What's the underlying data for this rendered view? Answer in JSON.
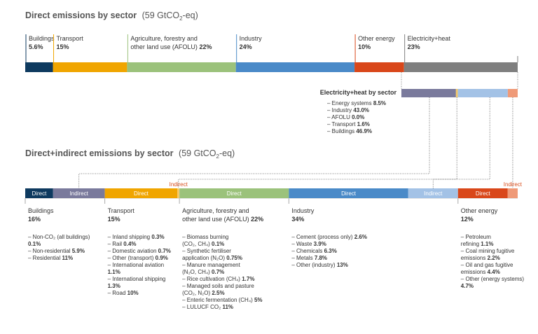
{
  "chart_data": [
    {
      "type": "bar",
      "title": "Direct emissions by sector",
      "title_unit": "(59 GtCO",
      "title_unit_sub": "2",
      "title_unit_end": "-eq)",
      "segments": [
        {
          "name": "Buildings",
          "label": "Buildings",
          "label2": "",
          "value_text": "5.6%",
          "value": 5.6,
          "color": "#0e3a5f"
        },
        {
          "name": "Transport",
          "label": "Transport",
          "label2": "",
          "value_text": "15%",
          "value": 15,
          "color": "#f0a500"
        },
        {
          "name": "AFOLU",
          "label": "Agriculture, forestry and",
          "label2": "other land use (AFOLU) ",
          "value_text": "22%",
          "value": 22,
          "color": "#9bc27b"
        },
        {
          "name": "Industry",
          "label": "Industry",
          "label2": "",
          "value_text": "24%",
          "value": 24,
          "color": "#4a8ac8"
        },
        {
          "name": "Other energy",
          "label": "Other energy",
          "label2": "",
          "value_text": "10%",
          "value": 10,
          "color": "#d9471a"
        },
        {
          "name": "Electricity+heat",
          "label": "Electricity+heat",
          "label2": "",
          "value_text": "23%",
          "value": 23,
          "color": "#7f7f7f"
        }
      ]
    },
    {
      "type": "bar",
      "title": "Electricity+heat by sector",
      "items": [
        {
          "label": "– Energy systems ",
          "value_text": "8.5%",
          "value": 8.5
        },
        {
          "label": "– Industry ",
          "value_text": "43.0%",
          "value": 43.0
        },
        {
          "label": "– AFOLU ",
          "value_text": "0.0%",
          "value": 0.0
        },
        {
          "label": "– Transport ",
          "value_text": "1.6%",
          "value": 1.6
        },
        {
          "label": "– Buildings ",
          "value_text": "46.9%",
          "value": 46.9
        }
      ]
    },
    {
      "type": "bar",
      "title": "Direct+indirect emissions by sector",
      "title_unit": "(59 GtCO",
      "title_unit_sub": "2",
      "title_unit_end": "-eq)",
      "direct_label": "Direct",
      "indirect_label": "Indirect",
      "sectors": [
        {
          "name": "Buildings",
          "label": "Buildings",
          "label2": "",
          "value_text": "16%",
          "value": 16,
          "direct": 5.6,
          "indirect": 10.4,
          "direct_color": "#0e3a5f",
          "indirect_color": "#7a7a9c",
          "items": [
            {
              "t": "– Non-CO₂ (all buildings)",
              "v": ""
            },
            {
              "t": "   ",
              "v": "0.1%"
            },
            {
              "t": "– Non-residential ",
              "v": "5.9%"
            },
            {
              "t": "– Residential ",
              "v": "11%"
            }
          ]
        },
        {
          "name": "Transport",
          "label": "Transport",
          "label2": "",
          "value_text": "15%",
          "value": 15,
          "direct": 14.6,
          "indirect": 0.4,
          "direct_color": "#f0a500",
          "indirect_color": "#f5c96a",
          "items": [
            {
              "t": "– Inland shipping ",
              "v": "0.3%"
            },
            {
              "t": "– Rail ",
              "v": "0.4%"
            },
            {
              "t": "– Domestic aviation ",
              "v": "0.7%"
            },
            {
              "t": "– Other (transport) ",
              "v": "0.9%"
            },
            {
              "t": "– International aviation",
              "v": ""
            },
            {
              "t": "   ",
              "v": "1.1%"
            },
            {
              "t": "– International shipping",
              "v": ""
            },
            {
              "t": "   ",
              "v": "1.3%"
            },
            {
              "t": "– Road ",
              "v": "10%"
            }
          ]
        },
        {
          "name": "AFOLU",
          "label": "Agriculture, forestry and",
          "label2": "other land use (AFOLU) ",
          "value_text": "22%",
          "value": 22,
          "direct": 22,
          "indirect": 0,
          "direct_color": "#9bc27b",
          "indirect_color": "#c5dcae",
          "items": [
            {
              "t": "– Biomass burning",
              "v": ""
            },
            {
              "t": "   (CO₂, CH₄) ",
              "v": "0.1%"
            },
            {
              "t": "– Synthetic fertiliser",
              "v": ""
            },
            {
              "t": "   application (N₂O) ",
              "v": "0.75%"
            },
            {
              "t": "– Manure management",
              "v": ""
            },
            {
              "t": "   (N₂O, CH₄) ",
              "v": "0.7%"
            },
            {
              "t": "– Rice cultivation (CH₄) ",
              "v": "1.7%"
            },
            {
              "t": "– Managed soils and pasture",
              "v": ""
            },
            {
              "t": "   (CO₂, N₂O) ",
              "v": "2.5%"
            },
            {
              "t": "– Enteric fermentation (CH₄) ",
              "v": "5%"
            },
            {
              "t": "– LULUCF CO₂ ",
              "v": "11%"
            }
          ]
        },
        {
          "name": "Industry",
          "label": "Industry",
          "label2": "",
          "value_text": "34%",
          "value": 34,
          "direct": 24,
          "indirect": 10,
          "direct_color": "#4a8ac8",
          "indirect_color": "#a3c2e6",
          "items": [
            {
              "t": "– Cement (process only) ",
              "v": "2.6%"
            },
            {
              "t": "– Waste ",
              "v": "3.9%"
            },
            {
              "t": "– Chemicals ",
              "v": "6.3%"
            },
            {
              "t": "– Metals ",
              "v": "7.8%"
            },
            {
              "t": "– Other (industry) ",
              "v": "13%"
            }
          ]
        },
        {
          "name": "Other energy",
          "label": "Other energy",
          "label2": "",
          "value_text": "12%",
          "value": 12,
          "direct": 10,
          "indirect": 2,
          "direct_color": "#d9471a",
          "indirect_color": "#ef9a78",
          "items": [
            {
              "t": "– Petroleum",
              "v": ""
            },
            {
              "t": "   refining ",
              "v": "1.1%"
            },
            {
              "t": "– Coal mining fugitive",
              "v": ""
            },
            {
              "t": "   emissions ",
              "v": "2.2%"
            },
            {
              "t": "– Oil and gas fugitive",
              "v": ""
            },
            {
              "t": "   emissions ",
              "v": "4.4%"
            },
            {
              "t": "– Other (energy systems)",
              "v": ""
            },
            {
              "t": "   ",
              "v": "4.7%"
            }
          ]
        }
      ]
    }
  ]
}
